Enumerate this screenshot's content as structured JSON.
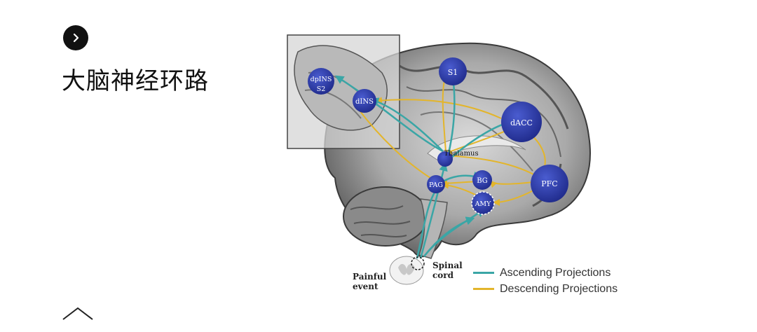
{
  "title": "大脑神经环路",
  "icons": {
    "bullet": "chevron-right-circle-icon",
    "collapse": "chevron-up-icon"
  },
  "regions": {
    "dpins_s2": "dpINS\nS2",
    "dins": "dINS",
    "s1": "S1",
    "dacc": "dACC",
    "thalamus": "Thalamus",
    "bg": "BG",
    "pag": "PAG",
    "amy": "AMY",
    "pfc": "PFC"
  },
  "labels": {
    "painful_event": "Painful\nevent",
    "spinal_cord": "Spinal\ncord"
  },
  "legend": [
    {
      "label": "Ascending Projections",
      "color": "#3aa6a6"
    },
    {
      "label": "Descending Projections",
      "color": "#e3b52b"
    }
  ],
  "colors": {
    "node": "#2f3ea8",
    "ascending": "#3aa6a6",
    "descending": "#e3b52b"
  }
}
